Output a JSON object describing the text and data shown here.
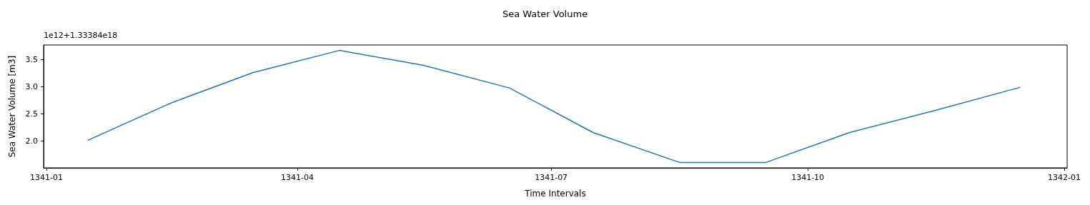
{
  "chart_data": {
    "type": "line",
    "title": "Sea Water Volume",
    "xlabel": "Time Intervals",
    "ylabel": "Sea Water Volume [m3]",
    "annotations": [
      "1e12+1.33384e18"
    ],
    "x": [
      "1341-01-16",
      "1341-02-15",
      "1341-03-16",
      "1341-04-16",
      "1341-05-16",
      "1341-06-16",
      "1341-07-16",
      "1341-08-16",
      "1341-09-16",
      "1341-10-16",
      "1341-11-16",
      "1341-12-16"
    ],
    "series": [
      {
        "color": "#1f77b4",
        "values": [
          2.02,
          2.71,
          3.26,
          3.67,
          3.4,
          2.98,
          2.16,
          1.61,
          1.61,
          2.16,
          2.57,
          2.99
        ]
      }
    ],
    "xlim": [
      "1340-12-31",
      "1342-01-02"
    ],
    "xticks": [
      "1341-01",
      "1341-04",
      "1341-07",
      "1341-10",
      "1342-01"
    ],
    "ylim": [
      1.51,
      3.77
    ],
    "yticks": [
      {
        "value": 2,
        "label": "2.0"
      },
      2.5,
      {
        "value": 3,
        "label": "3.0"
      },
      3.5
    ],
    "grid": false,
    "marker": "none",
    "line_style": "solid"
  }
}
